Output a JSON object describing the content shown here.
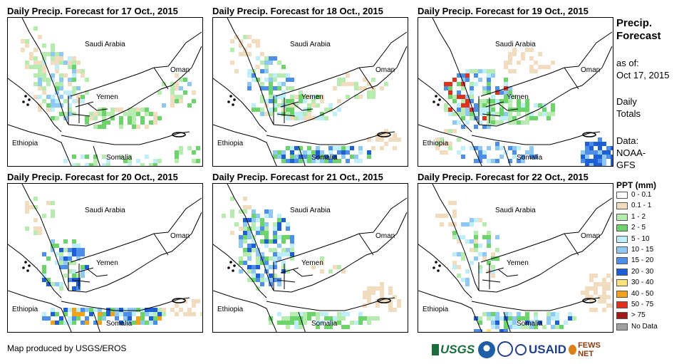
{
  "panels": [
    {
      "title": "Daily Precip. Forecast for 17 Oct., 2015"
    },
    {
      "title": "Daily Precip. Forecast for 18 Oct., 2015"
    },
    {
      "title": "Daily Precip. Forecast for 19 Oct., 2015"
    },
    {
      "title": "Daily Precip. Forecast for 20 Oct., 2015"
    },
    {
      "title": "Daily Precip. Forecast for 21 Oct., 2015"
    },
    {
      "title": "Daily Precip. Forecast for 22 Oct., 2015"
    }
  ],
  "map_labels": {
    "saudi": "Saudi Arabia",
    "oman": "Oman",
    "yemen": "Yemen",
    "ethiopia": "Ethiopia",
    "somalia": "Somalia"
  },
  "sidebar": {
    "title_line1": "Precip.",
    "title_line2": "Forecast",
    "asof_label": "as of:",
    "asof_date": "Oct 17, 2015",
    "daily_line1": "Daily",
    "daily_line2": "Totals",
    "data_line1": "Data:",
    "data_line2": "NOAA-",
    "data_line3": "GFS"
  },
  "legend": {
    "title": "PPT (mm)",
    "items": [
      {
        "label": "0 - 0.1",
        "color": "#ffffff"
      },
      {
        "label": "0.1 - 1",
        "color": "#f2dcc0"
      },
      {
        "label": "1 - 2",
        "color": "#b8ebb0"
      },
      {
        "label": "2 - 5",
        "color": "#6cd46a"
      },
      {
        "label": "5 - 10",
        "color": "#bdeefa"
      },
      {
        "label": "10 - 15",
        "color": "#8fc8f2"
      },
      {
        "label": "15 - 20",
        "color": "#4d8fe8"
      },
      {
        "label": "20 - 30",
        "color": "#1f5fd6"
      },
      {
        "label": "30 - 40",
        "color": "#fbe27a"
      },
      {
        "label": "40 - 50",
        "color": "#f5a21b"
      },
      {
        "label": "50 - 75",
        "color": "#e0301e"
      },
      {
        "label": "> 75",
        "color": "#a01818"
      },
      {
        "label": "No Data",
        "color": "#a0a0a0"
      }
    ]
  },
  "footer": {
    "credit": "Map produced by USGS/EROS",
    "logo_usgs": "USGS",
    "logo_usaid": "USAID",
    "logo_fews": "FEWS NET"
  }
}
